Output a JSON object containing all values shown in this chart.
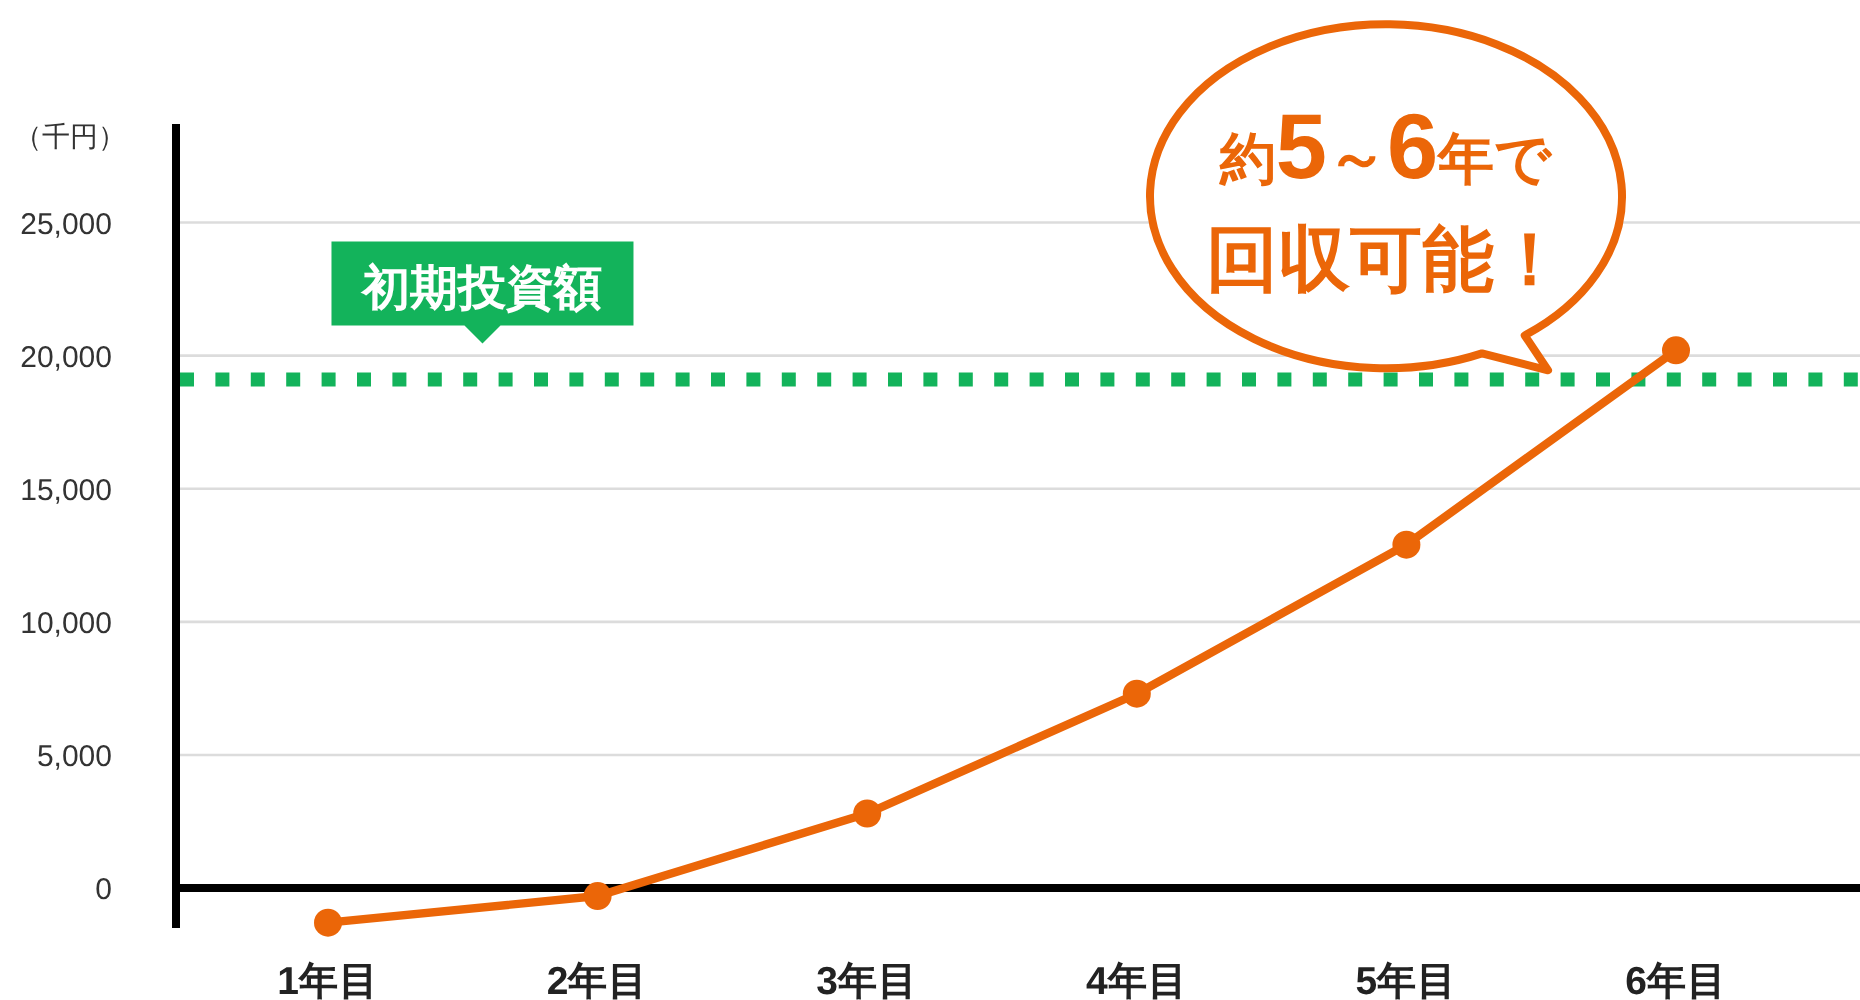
{
  "chart_data": {
    "type": "line",
    "ylabel": "（千円）",
    "categories": [
      "1年目",
      "2年目",
      "3年目",
      "4年目",
      "5年目",
      "6年目"
    ],
    "series": [
      {
        "color": "#eb6608",
        "values": [
          -1300,
          -300,
          2800,
          7300,
          12900,
          20200
        ]
      }
    ],
    "ylim": [
      -1500,
      28700
    ],
    "yticks": [
      0,
      {
        "value": 5000,
        "label": "5,000"
      },
      {
        "value": 10000,
        "label": "10,000"
      },
      {
        "value": 15000,
        "label": "15,000"
      },
      {
        "value": 20000,
        "label": "20,000"
      },
      {
        "value": 25000,
        "label": "25,000"
      }
    ],
    "grid": "y",
    "marker": "circle",
    "line_style": "solid",
    "ref_lines": [
      {
        "axis": "y",
        "value": 19100,
        "label": "初期投資額",
        "color": "#13b35b",
        "line_style": "dotted"
      }
    ],
    "annotations": [
      {
        "text": "約5～6年で回収可能！",
        "x": "6年目",
        "y": 20200
      }
    ]
  }
}
